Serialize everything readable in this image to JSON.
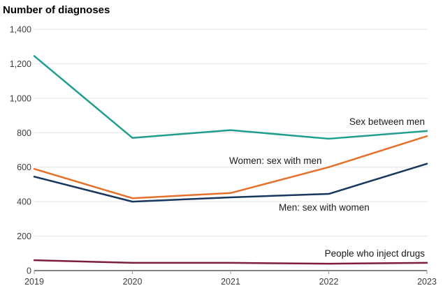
{
  "chart_data": {
    "type": "line",
    "title": "Number of diagnoses",
    "xlabel": "",
    "ylabel": "Number of diagnoses",
    "x_labels": [
      "2019",
      "2020",
      "2021",
      "2022",
      "2023"
    ],
    "ylim": [
      0,
      1400
    ],
    "y_ticks": [
      {
        "value": 0,
        "label": "0"
      },
      {
        "value": 200,
        "label": "200"
      },
      {
        "value": 400,
        "label": "400"
      },
      {
        "value": 600,
        "label": "600"
      },
      {
        "value": 800,
        "label": "800"
      },
      {
        "value": 1000,
        "label": "1,000"
      },
      {
        "value": 1200,
        "label": "1,200"
      },
      {
        "value": 1400,
        "label": "1,400"
      }
    ],
    "grid": "horizontal-only",
    "legend": "direct-labels-on-chart",
    "series": [
      {
        "name": "Sex between men",
        "color": "#1f9e8e",
        "values": [
          1245,
          770,
          815,
          765,
          810
        ]
      },
      {
        "name": "Women: sex with men",
        "color": "#e5702a",
        "values": [
          590,
          420,
          450,
          600,
          780
        ]
      },
      {
        "name": "Men: sex with women",
        "color": "#17375e",
        "values": [
          545,
          400,
          425,
          445,
          620
        ]
      },
      {
        "name": "People who inject drugs",
        "color": "#7f1d41",
        "values": [
          60,
          45,
          45,
          40,
          45
        ]
      }
    ],
    "axis_color": "#595959",
    "gridline_color": "#e2e2e2",
    "tick_color": "#999999"
  }
}
